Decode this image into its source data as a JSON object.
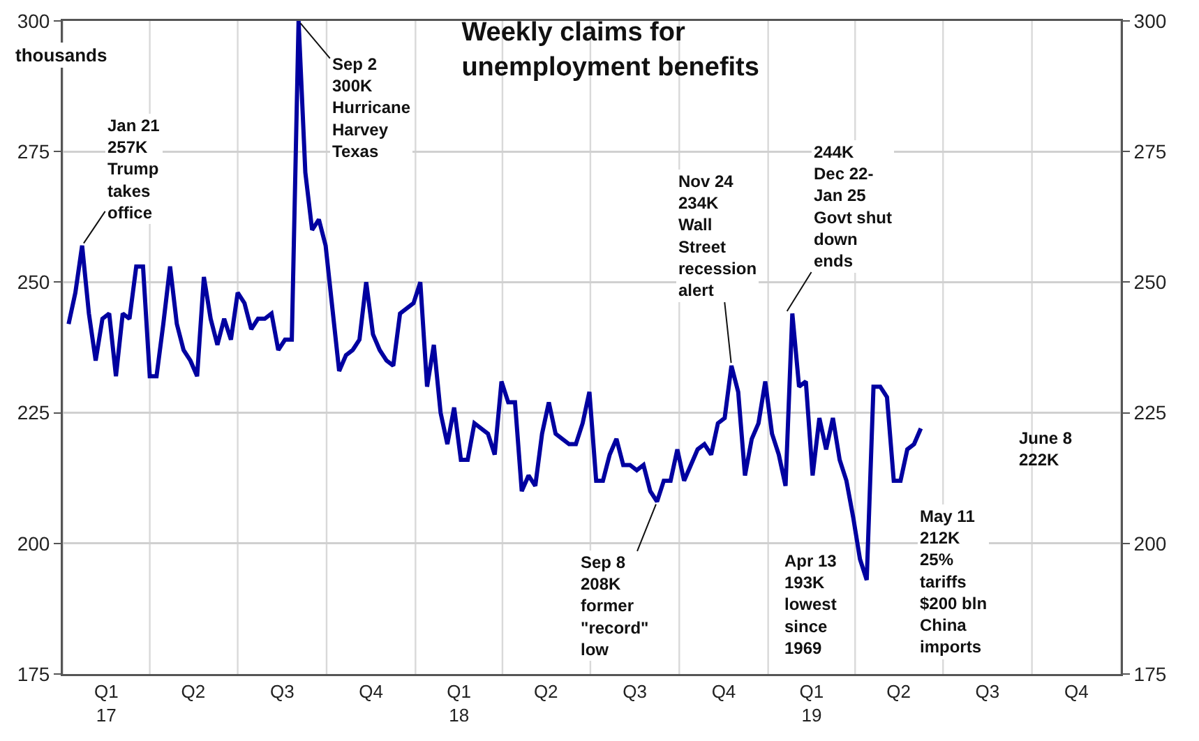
{
  "chart_data": {
    "type": "line",
    "title": "Weekly claims for\nunemployment benefits",
    "ylabel": "thousands",
    "x": [
      "2017-01-07",
      "2017-01-14",
      "2017-01-21",
      "2017-01-28",
      "2017-02-04",
      "2017-02-11",
      "2017-02-18",
      "2017-02-25",
      "2017-03-04",
      "2017-03-11",
      "2017-03-18",
      "2017-03-25",
      "2017-04-01",
      "2017-04-08",
      "2017-04-15",
      "2017-04-22",
      "2017-04-29",
      "2017-05-06",
      "2017-05-13",
      "2017-05-20",
      "2017-05-27",
      "2017-06-03",
      "2017-06-10",
      "2017-06-17",
      "2017-06-24",
      "2017-07-01",
      "2017-07-08",
      "2017-07-15",
      "2017-07-22",
      "2017-07-29",
      "2017-08-05",
      "2017-08-12",
      "2017-08-19",
      "2017-08-26",
      "2017-09-02",
      "2017-09-09",
      "2017-09-16",
      "2017-09-23",
      "2017-09-30",
      "2017-10-07",
      "2017-10-14",
      "2017-10-21",
      "2017-10-28",
      "2017-11-04",
      "2017-11-11",
      "2017-11-18",
      "2017-11-25",
      "2017-12-02",
      "2017-12-09",
      "2017-12-16",
      "2017-12-23",
      "2017-12-30",
      "2018-01-06",
      "2018-01-13",
      "2018-01-20",
      "2018-01-27",
      "2018-02-03",
      "2018-02-10",
      "2018-02-17",
      "2018-02-24",
      "2018-03-03",
      "2018-03-10",
      "2018-03-17",
      "2018-03-24",
      "2018-03-31",
      "2018-04-07",
      "2018-04-14",
      "2018-04-21",
      "2018-04-28",
      "2018-05-05",
      "2018-05-12",
      "2018-05-19",
      "2018-05-26",
      "2018-06-02",
      "2018-06-09",
      "2018-06-16",
      "2018-06-23",
      "2018-06-30",
      "2018-07-07",
      "2018-07-14",
      "2018-07-21",
      "2018-07-28",
      "2018-08-04",
      "2018-08-11",
      "2018-08-18",
      "2018-08-25",
      "2018-09-01",
      "2018-09-08",
      "2018-09-15",
      "2018-09-22",
      "2018-09-29",
      "2018-10-06",
      "2018-10-13",
      "2018-10-20",
      "2018-10-27",
      "2018-11-03",
      "2018-11-10",
      "2018-11-17",
      "2018-11-24",
      "2018-12-01",
      "2018-12-08",
      "2018-12-15",
      "2018-12-22",
      "2018-12-29",
      "2019-01-05",
      "2019-01-12",
      "2019-01-19",
      "2019-01-26",
      "2019-02-02",
      "2019-02-09",
      "2019-02-16",
      "2019-02-23",
      "2019-03-02",
      "2019-03-09",
      "2019-03-16",
      "2019-03-23",
      "2019-03-30",
      "2019-04-06",
      "2019-04-13",
      "2019-04-20",
      "2019-04-27",
      "2019-05-04",
      "2019-05-11",
      "2019-05-18",
      "2019-05-25",
      "2019-06-01",
      "2019-06-08"
    ],
    "series": [
      {
        "color": "#0000a0",
        "values": [
          242,
          248,
          257,
          244,
          235,
          243,
          244,
          232,
          244,
          243,
          253,
          253,
          232,
          232,
          242,
          253,
          242,
          237,
          235,
          232,
          251,
          243,
          238,
          243,
          239,
          248,
          246,
          241,
          243,
          243,
          244,
          237,
          239,
          239,
          300,
          271,
          260,
          262,
          257,
          245,
          233,
          236,
          237,
          239,
          250,
          240,
          237,
          235,
          234,
          244,
          245,
          246,
          250,
          230,
          238,
          225,
          219,
          226,
          216,
          216,
          223,
          222,
          221,
          217,
          231,
          227,
          227,
          210,
          213,
          211,
          221,
          227,
          221,
          220,
          219,
          219,
          223,
          229,
          212,
          212,
          217,
          220,
          215,
          215,
          214,
          215,
          210,
          208,
          212,
          212,
          218,
          212,
          215,
          218,
          219,
          217,
          223,
          224,
          234,
          229,
          213,
          220,
          223,
          231,
          221,
          217,
          211,
          244,
          230,
          231,
          213,
          224,
          218,
          224,
          216,
          212,
          205,
          197,
          193,
          230,
          230,
          228,
          212,
          212,
          218,
          219,
          222
        ]
      }
    ],
    "xlim": [
      "2017-01-01",
      "2020-01-01"
    ],
    "xticks": [
      {
        "value": "2017-01-01",
        "label": null
      },
      {
        "value": "2017-02-15",
        "label": "Q1\n17"
      },
      {
        "value": "2017-04-01",
        "label": null
      },
      {
        "value": "2017-05-16",
        "label": "Q2"
      },
      {
        "value": "2017-07-01",
        "label": null
      },
      {
        "value": "2017-08-16",
        "label": "Q3"
      },
      {
        "value": "2017-10-01",
        "label": null
      },
      {
        "value": "2017-11-16",
        "label": "Q4"
      },
      {
        "value": "2018-01-01",
        "label": null
      },
      {
        "value": "2018-02-15",
        "label": "Q1\n18"
      },
      {
        "value": "2018-04-01",
        "label": null
      },
      {
        "value": "2018-05-16",
        "label": "Q2"
      },
      {
        "value": "2018-07-01",
        "label": null
      },
      {
        "value": "2018-08-16",
        "label": "Q3"
      },
      {
        "value": "2018-10-01",
        "label": null
      },
      {
        "value": "2018-11-16",
        "label": "Q4"
      },
      {
        "value": "2019-01-01",
        "label": null
      },
      {
        "value": "2019-02-15",
        "label": "Q1\n19"
      },
      {
        "value": "2019-04-01",
        "label": null
      },
      {
        "value": "2019-05-16",
        "label": "Q2"
      },
      {
        "value": "2019-07-01",
        "label": null
      },
      {
        "value": "2019-08-16",
        "label": "Q3"
      },
      {
        "value": "2019-10-01",
        "label": null
      },
      {
        "value": "2019-11-16",
        "label": "Q4"
      },
      {
        "value": "2020-01-01",
        "label": null
      }
    ],
    "ylim": [
      175,
      300
    ],
    "yticks": [
      175,
      200,
      225,
      250,
      275,
      300
    ],
    "y2lim": [
      175,
      300
    ],
    "y2ticks": [
      175,
      200,
      225,
      250,
      275,
      300
    ],
    "grid": true,
    "marker": "none",
    "line_style": "solid",
    "annotations": [
      {
        "text": "Jan 21\n257K\nTrump\ntakes\noffice",
        "x": "2017-01-21",
        "y": 257
      },
      {
        "text": "Sep 2\n300K\nHurricane\nHarvey\nTexas",
        "x": "2017-09-02",
        "y": 300
      },
      {
        "text": "Nov 24\n234K\nWall\nStreet\nrecession\nalert",
        "x": "2018-11-24",
        "y": 234
      },
      {
        "text": "Sep 8\n208K\nformer\n\"record\"\nlow",
        "x": "2018-09-08",
        "y": 208
      },
      {
        "text": "244K\nDec 22-\nJan 25\nGovt shut\ndown\nends",
        "x": "2019-01-19",
        "y": 244
      },
      {
        "text": "Apr 13\n193K\nlowest\nsince\n1969",
        "x": "2019-04-13",
        "y": 193
      },
      {
        "text": "May 11\n212K\n25%\ntariffs\n$200 bln\nChina\nimports",
        "x": "2019-05-11",
        "y": 212
      },
      "June 8\n222K"
    ]
  }
}
